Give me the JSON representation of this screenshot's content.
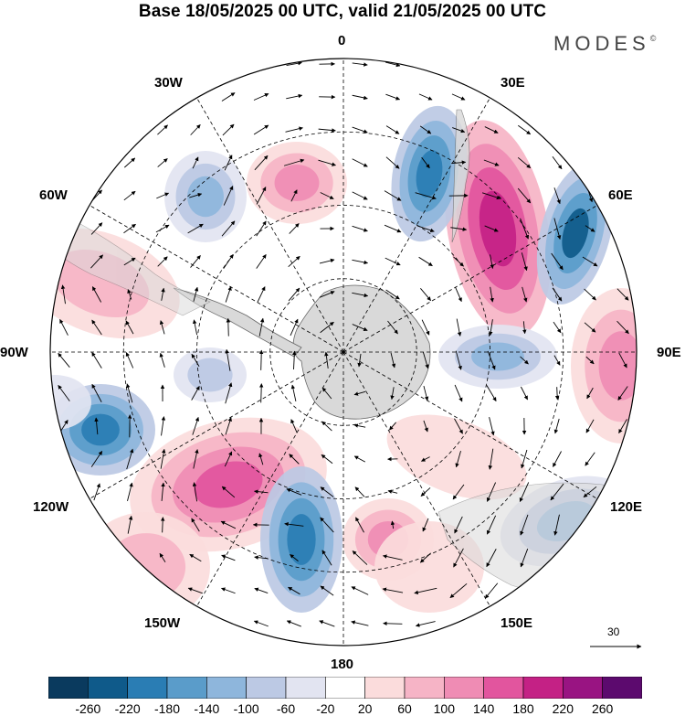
{
  "title": "Base 18/05/2025 00 UTC, valid 21/05/2025 00 UTC",
  "brand": "MODES",
  "brand_mark": "©",
  "longitude_labels": {
    "lon_0": "0",
    "lon_30E": "30E",
    "lon_60E": "60E",
    "lon_90E": "90E",
    "lon_120E": "120E",
    "lon_150E": "150E",
    "lon_180": "180",
    "lon_150W": "150W",
    "lon_120W": "120W",
    "lon_90W": "90W",
    "lon_60W": "60W",
    "lon_30W": "30W"
  },
  "reference_vector": {
    "value": "30"
  },
  "colorbar": {
    "colors": [
      "#0a3a5e",
      "#0f5a8a",
      "#2a7db4",
      "#5a9cca",
      "#8eb6dc",
      "#bcc9e4",
      "#e2e4f1",
      "#ffffff",
      "#fbdcdc",
      "#f6b4c6",
      "#ef8cb4",
      "#e2559e",
      "#c42185",
      "#991482",
      "#5c0a6e"
    ],
    "ticks": [
      "-260",
      "-220",
      "-180",
      "-140",
      "-100",
      "-60",
      "-20",
      "20",
      "60",
      "100",
      "140",
      "180",
      "220",
      "260"
    ]
  },
  "colors": {
    "land": "#d9d9d9",
    "coast": "#666666",
    "grid": "#000000"
  }
}
